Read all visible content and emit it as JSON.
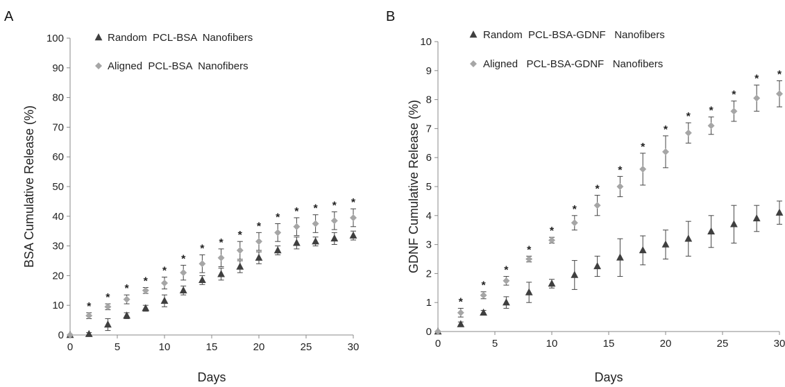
{
  "figure": {
    "panel_a_label": "A",
    "panel_b_label": "B"
  },
  "colors": {
    "random": "#3f3f3f",
    "aligned": "#a6a6a6",
    "axis": "#888888"
  },
  "chart_data": [
    {
      "type": "scatter",
      "panel": "A",
      "xlabel": "Days",
      "ylabel": "BSA Cumulative Release (%)",
      "xlim": [
        0,
        30
      ],
      "ylim": [
        0,
        100
      ],
      "xticks": [
        0,
        5,
        10,
        15,
        20,
        25,
        30
      ],
      "yticks": [
        0,
        10,
        20,
        30,
        40,
        50,
        60,
        70,
        80,
        90,
        100
      ],
      "legend_position": "top-left",
      "grid": false,
      "significance_marker": "*",
      "significance_days": [
        2,
        4,
        6,
        8,
        10,
        12,
        14,
        16,
        18,
        20,
        22,
        24,
        26,
        28,
        30
      ],
      "series": [
        {
          "name": "Random  PCL-BSA  Nanofibers",
          "marker": "triangle",
          "x": [
            0,
            2,
            4,
            6,
            8,
            10,
            12,
            14,
            16,
            18,
            20,
            22,
            24,
            26,
            28,
            30
          ],
          "y": [
            0,
            0.3,
            3.5,
            6.5,
            9,
            11.5,
            15,
            18.5,
            20.5,
            23,
            26,
            28.5,
            31,
            31.5,
            32.5,
            33.5
          ],
          "err": [
            0,
            0.5,
            2,
            1,
            1,
            2,
            1.5,
            1.5,
            2,
            2,
            2,
            1.5,
            2,
            1.5,
            2,
            1.5
          ]
        },
        {
          "name": "Aligned  PCL-BSA  Nanofibers",
          "marker": "diamond",
          "x": [
            0,
            2,
            4,
            6,
            8,
            10,
            12,
            14,
            16,
            18,
            20,
            22,
            24,
            26,
            28,
            30
          ],
          "y": [
            0,
            6.5,
            9.5,
            12,
            15,
            17.5,
            21,
            24,
            26,
            28.5,
            31.5,
            34.5,
            36.5,
            37.5,
            38.5,
            39.5
          ],
          "err": [
            0,
            1,
            1,
            1.5,
            1,
            2,
            2.5,
            3,
            3,
            3,
            3,
            3,
            3,
            3,
            3,
            3
          ]
        }
      ]
    },
    {
      "type": "scatter",
      "panel": "B",
      "xlabel": "Days",
      "ylabel": "GDNF Cumulative Release (%)",
      "xlim": [
        0,
        30
      ],
      "ylim": [
        0,
        10
      ],
      "xticks": [
        0,
        5,
        10,
        15,
        20,
        25,
        30
      ],
      "yticks": [
        0,
        1,
        2,
        3,
        4,
        5,
        6,
        7,
        8,
        9,
        10
      ],
      "legend_position": "top-left",
      "grid": false,
      "significance_marker": "*",
      "significance_days": [
        2,
        4,
        6,
        8,
        10,
        12,
        14,
        16,
        18,
        20,
        22,
        24,
        26,
        28,
        30
      ],
      "series": [
        {
          "name": "Random  PCL-BSA-GDNF   Nanofibers",
          "marker": "triangle",
          "x": [
            0,
            2,
            4,
            6,
            8,
            10,
            12,
            14,
            16,
            18,
            20,
            22,
            24,
            26,
            28,
            30
          ],
          "y": [
            0,
            0.25,
            0.65,
            1.0,
            1.35,
            1.65,
            1.95,
            2.25,
            2.55,
            2.8,
            3.0,
            3.2,
            3.45,
            3.7,
            3.9,
            4.1
          ],
          "err": [
            0,
            0.08,
            0.08,
            0.2,
            0.35,
            0.15,
            0.5,
            0.35,
            0.65,
            0.5,
            0.5,
            0.6,
            0.55,
            0.65,
            0.45,
            0.4
          ]
        },
        {
          "name": "Aligned   PCL-BSA-GDNF   Nanofibers",
          "marker": "diamond",
          "x": [
            0,
            2,
            4,
            6,
            8,
            10,
            12,
            14,
            16,
            18,
            20,
            22,
            24,
            26,
            28,
            30
          ],
          "y": [
            0,
            0.65,
            1.25,
            1.75,
            2.5,
            3.15,
            3.75,
            4.35,
            5.0,
            5.6,
            6.2,
            6.85,
            7.1,
            7.6,
            8.05,
            8.2
          ],
          "err": [
            0,
            0.15,
            0.12,
            0.15,
            0.1,
            0.1,
            0.25,
            0.35,
            0.35,
            0.55,
            0.55,
            0.35,
            0.3,
            0.35,
            0.45,
            0.45
          ]
        }
      ]
    }
  ]
}
